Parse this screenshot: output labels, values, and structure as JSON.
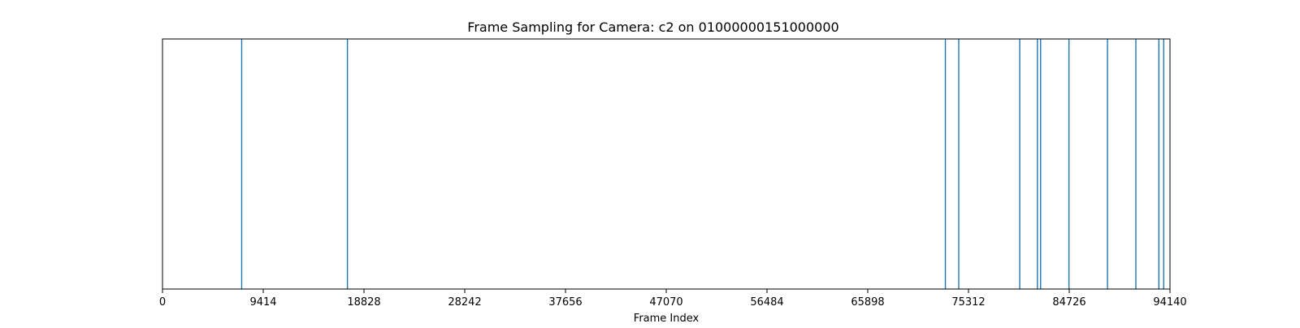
{
  "chart_data": {
    "type": "line",
    "subtype": "vertical-event-lines",
    "title": "Frame Sampling for Camera: c2 on 01000000151000000",
    "xlabel": "Frame Index",
    "ylabel": "",
    "xlim": [
      0,
      94140
    ],
    "xticks": [
      0,
      9414,
      18828,
      28242,
      37656,
      47070,
      56484,
      65898,
      75312,
      84726,
      94140
    ],
    "xtick_labels": [
      "0",
      "9414",
      "18828",
      "28242",
      "37656",
      "47070",
      "56484",
      "65898",
      "75312",
      "84726",
      "94140"
    ],
    "show_yticks": false,
    "grid": false,
    "line_color": "#1f77b4",
    "frames": [
      7400,
      17280,
      73150,
      74400,
      80100,
      81750,
      82050,
      84700,
      88300,
      90950,
      93100,
      93550
    ]
  }
}
